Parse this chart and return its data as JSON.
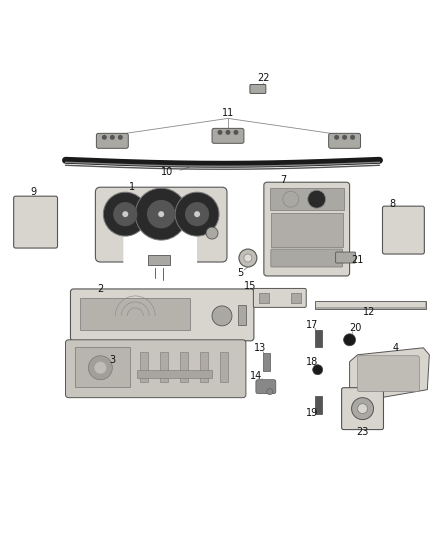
{
  "bg_color": "#ffffff",
  "fig_width": 4.38,
  "fig_height": 5.33,
  "dpi": 100,
  "line_color": "#888888",
  "label_color": "#111111",
  "label_fontsize": 7.0,
  "part_color": "#d8d4ce",
  "part_edge": "#555555",
  "dark_color": "#2a2a2a",
  "mid_color": "#aaa8a2"
}
